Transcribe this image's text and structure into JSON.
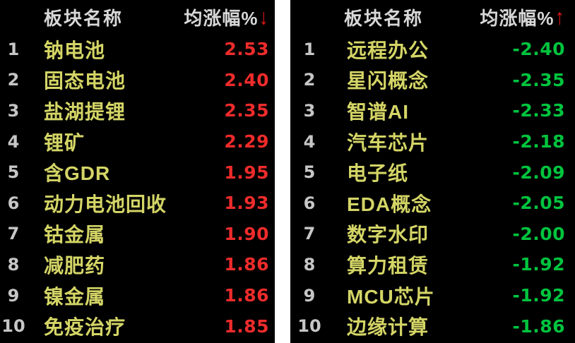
{
  "colors": {
    "bg": "#000000",
    "page": "#ffffff",
    "header-text": "#d8d8d8",
    "rank-text": "#c6c6c6",
    "name-yellow": "#d4d566",
    "up-red": "#ee2b2b",
    "down-green": "#00c43e",
    "arrow-red": "#e01515"
  },
  "panels": [
    {
      "id": "top-gainers",
      "header": {
        "name_col": "板块名称",
        "value_col": "均涨幅%",
        "sort_glyph": "↓",
        "sort_icon": "sort-descending-arrow"
      },
      "value_color": "#ee2b2b",
      "rows": [
        {
          "rank": "1",
          "name": "钠电池",
          "value": "2.53"
        },
        {
          "rank": "2",
          "name": "固态电池",
          "value": "2.40"
        },
        {
          "rank": "3",
          "name": "盐湖提锂",
          "value": "2.35"
        },
        {
          "rank": "4",
          "name": "锂矿",
          "value": "2.29"
        },
        {
          "rank": "5",
          "name": "含GDR",
          "value": "1.95"
        },
        {
          "rank": "6",
          "name": "动力电池回收",
          "value": "1.93"
        },
        {
          "rank": "7",
          "name": "钴金属",
          "value": "1.90"
        },
        {
          "rank": "8",
          "name": "减肥药",
          "value": "1.86"
        },
        {
          "rank": "9",
          "name": "镍金属",
          "value": "1.86"
        },
        {
          "rank": "10",
          "name": "免疫治疗",
          "value": "1.85"
        }
      ]
    },
    {
      "id": "top-losers",
      "header": {
        "name_col": "板块名称",
        "value_col": "均涨幅%",
        "sort_glyph": "↑",
        "sort_icon": "sort-ascending-arrow"
      },
      "value_color": "#00c43e",
      "rows": [
        {
          "rank": "1",
          "name": "远程办公",
          "value": "-2.40"
        },
        {
          "rank": "2",
          "name": "星闪概念",
          "value": "-2.35"
        },
        {
          "rank": "3",
          "name": "智谱AI",
          "value": "-2.33"
        },
        {
          "rank": "4",
          "name": "汽车芯片",
          "value": "-2.18"
        },
        {
          "rank": "5",
          "name": "电子纸",
          "value": "-2.09"
        },
        {
          "rank": "6",
          "name": "EDA概念",
          "value": "-2.05"
        },
        {
          "rank": "7",
          "name": "数字水印",
          "value": "-2.00"
        },
        {
          "rank": "8",
          "name": "算力租赁",
          "value": "-1.92"
        },
        {
          "rank": "9",
          "name": "MCU芯片",
          "value": "-1.92"
        },
        {
          "rank": "10",
          "name": "边缘计算",
          "value": "-1.86"
        }
      ]
    }
  ]
}
